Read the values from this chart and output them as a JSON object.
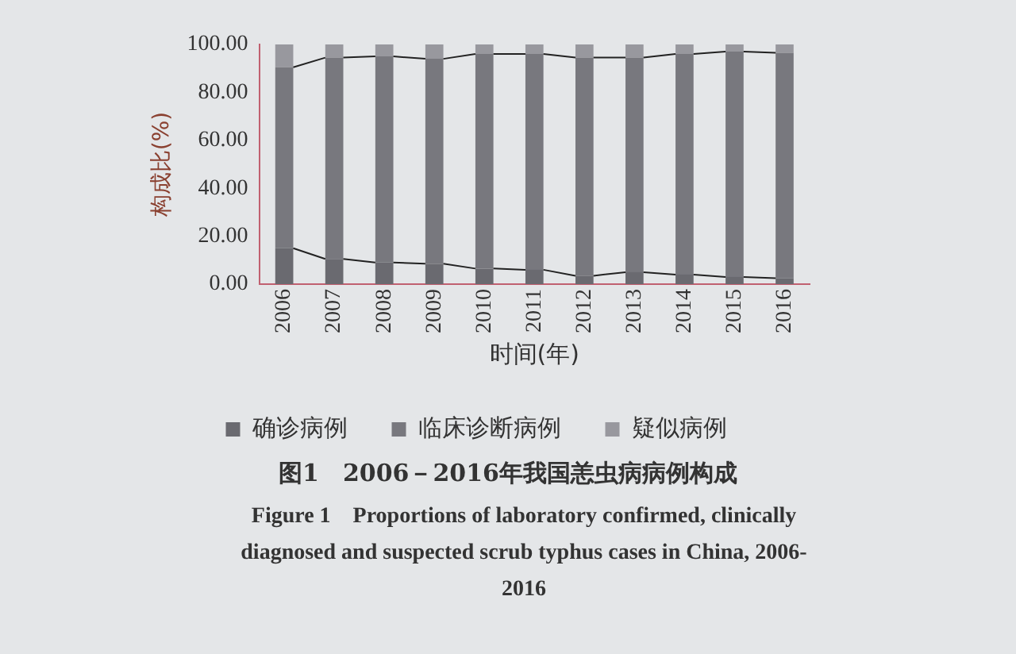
{
  "chart_data": {
    "type": "bar",
    "stacked": true,
    "title": "图1　2006－2016年我国恙虫病病例构成",
    "xlabel": "时间(年)",
    "ylabel": "构成比(%)",
    "annotations": [
      "Figure 1　Proportions of laboratory confirmed, clinically diagnosed and suspected scrub typhus cases in China, 2006-2016"
    ],
    "categories": [
      "2006",
      "2007",
      "2008",
      "2009",
      "2010",
      "2011",
      "2012",
      "2013",
      "2014",
      "2015",
      "2016"
    ],
    "series": [
      {
        "name": "确诊病例",
        "color": "#6a6a70",
        "values": [
          15,
          10.5,
          9,
          8.5,
          6.5,
          6,
          3.5,
          5,
          4,
          3,
          2.5
        ]
      },
      {
        "name": "临床诊断病例",
        "color": "#78787e",
        "values": [
          75.5,
          84,
          86,
          85.5,
          89.5,
          90,
          91,
          89.5,
          92,
          94,
          94
        ]
      },
      {
        "name": "疑似病例",
        "color": "#98989e",
        "values": [
          9.5,
          5.5,
          5,
          6,
          4,
          4,
          5.5,
          5.5,
          4,
          3,
          3.5
        ]
      }
    ],
    "ylim": [
      0,
      100
    ],
    "yticks": [
      {
        "value": 0,
        "label": "0.00"
      },
      {
        "value": 20,
        "label": "20.00"
      },
      {
        "value": 40,
        "label": "40.00"
      },
      {
        "value": 60,
        "label": "60.00"
      },
      {
        "value": 80,
        "label": "80.00"
      },
      {
        "value": 100,
        "label": "100.00"
      }
    ],
    "grid": false,
    "legend": "bottom"
  }
}
